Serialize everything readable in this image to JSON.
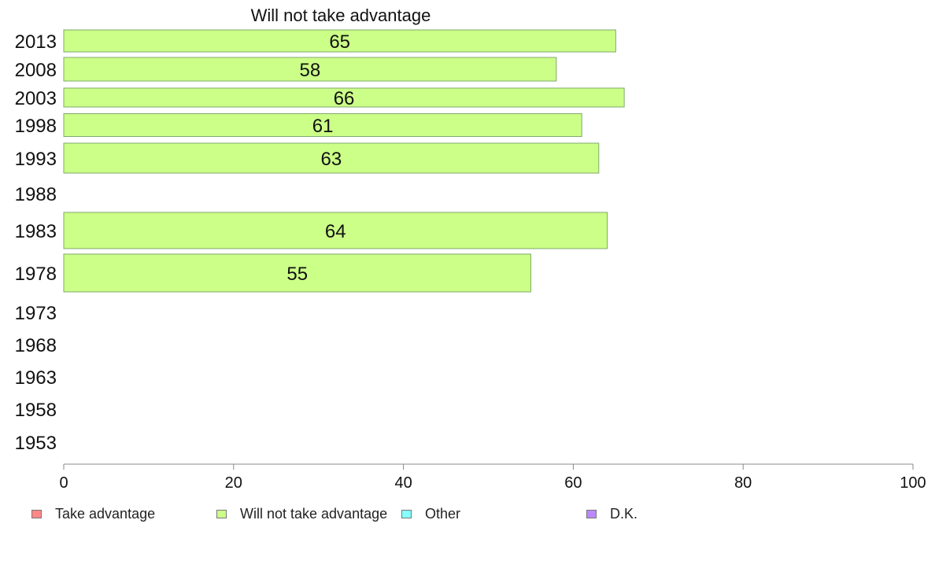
{
  "chart_data": {
    "type": "bar",
    "orientation": "horizontal",
    "title": "Will not take advantage",
    "categories": [
      "2013",
      "2008",
      "2003",
      "1998",
      "1993",
      "1988",
      "1983",
      "1978",
      "1973",
      "1968",
      "1963",
      "1958",
      "1953"
    ],
    "series": [
      {
        "name": "Will not take advantage",
        "color": "#ccff88",
        "values": [
          65,
          58,
          66,
          61,
          63,
          null,
          64,
          55,
          null,
          null,
          null,
          null,
          null
        ]
      }
    ],
    "xlim": [
      0,
      100
    ],
    "xticks": [
      0,
      20,
      40,
      60,
      80,
      100
    ],
    "grid": false,
    "legend_position": "bottom"
  },
  "legend": [
    {
      "label": "Take advantage",
      "color": "#ff8888"
    },
    {
      "label": "Will not take advantage",
      "color": "#ccff88"
    },
    {
      "label": "Other",
      "color": "#88ffff"
    },
    {
      "label": "D.K.",
      "color": "#bb88ff"
    }
  ]
}
